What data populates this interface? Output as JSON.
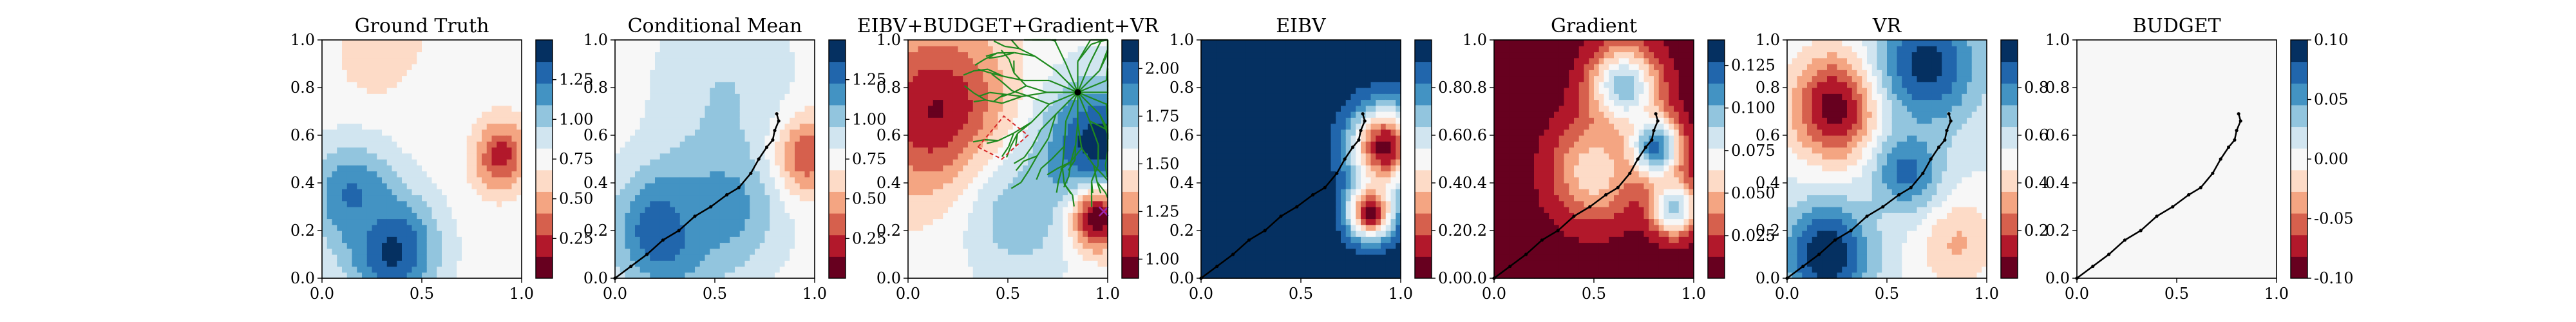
{
  "chart_data": [
    {
      "type": "heatmap",
      "title": "Ground Truth",
      "xlim": [
        0,
        1
      ],
      "ylim": [
        0,
        1
      ],
      "x_ticks": [
        "0.0",
        "0.5",
        "1.0"
      ],
      "y_ticks": [
        "0.0",
        "0.2",
        "0.4",
        "0.6",
        "0.8",
        "1.0"
      ],
      "colormap": "RdBu",
      "colorbar": {
        "min": 0.0,
        "max": 1.5,
        "ticks": [
          "0.25",
          "0.50",
          "0.75",
          "1.00",
          "1.25"
        ]
      },
      "features": [
        {
          "x": 0.88,
          "y": 0.52,
          "value": 0.12,
          "spread": 0.1
        },
        {
          "x": 0.3,
          "y": 0.95,
          "value": 0.55,
          "spread": 0.14
        },
        {
          "x": 0.55,
          "y": 0.62,
          "value": 0.75,
          "spread": 0.18
        },
        {
          "x": 0.35,
          "y": 0.12,
          "value": 1.42,
          "spread": 0.16
        },
        {
          "x": 0.15,
          "y": 0.35,
          "value": 1.25,
          "spread": 0.15
        }
      ],
      "path": []
    },
    {
      "type": "heatmap",
      "title": "Conditional Mean",
      "xlim": [
        0,
        1
      ],
      "ylim": [
        0,
        1
      ],
      "x_ticks": [
        "0.0",
        "0.5",
        "1.0"
      ],
      "y_ticks": [
        "0.0",
        "0.2",
        "0.4",
        "0.6",
        "0.8",
        "1.0"
      ],
      "colormap": "RdBu",
      "colorbar": {
        "min": 0.0,
        "max": 1.5,
        "ticks": [
          "0.25",
          "0.50",
          "0.75",
          "1.00",
          "1.25"
        ]
      },
      "features": [
        {
          "x": 0.92,
          "y": 0.52,
          "value": 0.1,
          "spread": 0.12
        },
        {
          "x": 0.55,
          "y": 0.8,
          "value": 0.95,
          "spread": 0.25
        },
        {
          "x": 0.25,
          "y": 0.2,
          "value": 1.4,
          "spread": 0.18
        },
        {
          "x": 0.55,
          "y": 0.3,
          "value": 1.15,
          "spread": 0.2
        }
      ],
      "path": [
        [
          0.0,
          0.0
        ],
        [
          0.08,
          0.05
        ],
        [
          0.16,
          0.1
        ],
        [
          0.24,
          0.16
        ],
        [
          0.32,
          0.2
        ],
        [
          0.4,
          0.26
        ],
        [
          0.48,
          0.3
        ],
        [
          0.56,
          0.35
        ],
        [
          0.62,
          0.38
        ],
        [
          0.68,
          0.44
        ],
        [
          0.72,
          0.5
        ],
        [
          0.76,
          0.55
        ],
        [
          0.79,
          0.58
        ],
        [
          0.8,
          0.62
        ],
        [
          0.82,
          0.66
        ],
        [
          0.81,
          0.69
        ]
      ]
    },
    {
      "type": "heatmap",
      "title": "EIBV+BUDGET+Gradient+VR",
      "xlim": [
        0,
        1
      ],
      "ylim": [
        0,
        1
      ],
      "x_ticks": [
        "0.0",
        "0.5",
        "1.0"
      ],
      "y_ticks": [
        "0.0",
        "0.2",
        "0.4",
        "0.6",
        "0.8",
        "1.0"
      ],
      "colormap": "RdBu",
      "colorbar": {
        "min": 0.9,
        "max": 2.15,
        "ticks": [
          "1.00",
          "1.25",
          "1.50",
          "1.75",
          "2.00"
        ]
      },
      "features": [
        {
          "x": 0.15,
          "y": 0.7,
          "value": 1.0,
          "spread": 0.25
        },
        {
          "x": 0.55,
          "y": 0.25,
          "value": 1.75,
          "spread": 0.2
        },
        {
          "x": 0.95,
          "y": 0.55,
          "value": 2.1,
          "spread": 0.2
        },
        {
          "x": 0.95,
          "y": 0.25,
          "value": 0.95,
          "spread": 0.1
        }
      ],
      "tree_root": [
        0.85,
        0.78
      ],
      "target_marker": [
        0.98,
        0.28
      ],
      "dashed_polygon": [
        [
          0.35,
          0.55
        ],
        [
          0.48,
          0.68
        ],
        [
          0.6,
          0.6
        ],
        [
          0.47,
          0.5
        ]
      ],
      "path": []
    },
    {
      "type": "heatmap",
      "title": "EIBV",
      "xlim": [
        0,
        1
      ],
      "ylim": [
        0,
        1
      ],
      "x_ticks": [
        "0.0",
        "0.5",
        "1.0"
      ],
      "y_ticks": [
        "0.0",
        "0.2",
        "0.4",
        "0.6",
        "0.8",
        "1.0"
      ],
      "colormap": "RdBu",
      "colorbar": {
        "min": 0.0,
        "max": 1.0,
        "ticks": [
          "0.0",
          "0.2",
          "0.4",
          "0.6",
          "0.8"
        ]
      },
      "features": [
        {
          "x": 0.92,
          "y": 0.55,
          "value": 0.05,
          "spread": 0.12
        },
        {
          "x": 0.85,
          "y": 0.28,
          "value": 0.05,
          "spread": 0.08
        }
      ],
      "background_value": 0.98,
      "path": [
        [
          0.0,
          0.0
        ],
        [
          0.08,
          0.05
        ],
        [
          0.16,
          0.1
        ],
        [
          0.24,
          0.16
        ],
        [
          0.32,
          0.2
        ],
        [
          0.4,
          0.26
        ],
        [
          0.48,
          0.3
        ],
        [
          0.56,
          0.35
        ],
        [
          0.62,
          0.38
        ],
        [
          0.68,
          0.44
        ],
        [
          0.72,
          0.5
        ],
        [
          0.76,
          0.55
        ],
        [
          0.79,
          0.58
        ],
        [
          0.8,
          0.62
        ],
        [
          0.82,
          0.66
        ],
        [
          0.81,
          0.69
        ]
      ]
    },
    {
      "type": "heatmap",
      "title": "Gradient",
      "xlim": [
        0,
        1
      ],
      "ylim": [
        0,
        1
      ],
      "x_ticks": [
        "0.0",
        "0.5",
        "1.0"
      ],
      "y_ticks": [
        "0.0",
        "0.2",
        "0.4",
        "0.6",
        "0.8",
        "1.0"
      ],
      "colormap": "RdBu",
      "colorbar": {
        "min": 0.0,
        "max": 0.14,
        "ticks": [
          "0.025",
          "0.050",
          "0.075",
          "0.100",
          "0.125"
        ]
      },
      "features": [
        {
          "x": 0.8,
          "y": 0.55,
          "value": 0.13,
          "spread": 0.09
        },
        {
          "x": 0.65,
          "y": 0.8,
          "value": 0.1,
          "spread": 0.12
        },
        {
          "x": 0.9,
          "y": 0.3,
          "value": 0.1,
          "spread": 0.08
        },
        {
          "x": 0.5,
          "y": 0.45,
          "value": 0.06,
          "spread": 0.15
        }
      ],
      "background_value": 0.005,
      "path": [
        [
          0.0,
          0.0
        ],
        [
          0.08,
          0.05
        ],
        [
          0.16,
          0.1
        ],
        [
          0.24,
          0.16
        ],
        [
          0.32,
          0.2
        ],
        [
          0.4,
          0.26
        ],
        [
          0.48,
          0.3
        ],
        [
          0.56,
          0.35
        ],
        [
          0.62,
          0.38
        ],
        [
          0.68,
          0.44
        ],
        [
          0.72,
          0.5
        ],
        [
          0.76,
          0.55
        ],
        [
          0.79,
          0.58
        ],
        [
          0.8,
          0.62
        ],
        [
          0.82,
          0.66
        ],
        [
          0.81,
          0.69
        ]
      ]
    },
    {
      "type": "heatmap",
      "title": "VR",
      "xlim": [
        0,
        1
      ],
      "ylim": [
        0,
        1
      ],
      "x_ticks": [
        "0.0",
        "0.5",
        "1.0"
      ],
      "y_ticks": [
        "0.0",
        "0.2",
        "0.4",
        "0.6",
        "0.8",
        "1.0"
      ],
      "colormap": "RdBu",
      "colorbar": {
        "min": 0.0,
        "max": 1.0,
        "ticks": [
          "0.2",
          "0.4",
          "0.6",
          "0.8"
        ]
      },
      "features": [
        {
          "x": 0.25,
          "y": 0.72,
          "value": 0.02,
          "spread": 0.16
        },
        {
          "x": 0.85,
          "y": 0.15,
          "value": 0.35,
          "spread": 0.14
        },
        {
          "x": 0.2,
          "y": 0.1,
          "value": 1.0,
          "spread": 0.15
        },
        {
          "x": 0.7,
          "y": 0.9,
          "value": 0.95,
          "spread": 0.18
        },
        {
          "x": 0.6,
          "y": 0.45,
          "value": 0.85,
          "spread": 0.12
        }
      ],
      "background_value": 0.55,
      "path": [
        [
          0.0,
          0.0
        ],
        [
          0.08,
          0.05
        ],
        [
          0.16,
          0.1
        ],
        [
          0.24,
          0.16
        ],
        [
          0.32,
          0.2
        ],
        [
          0.4,
          0.26
        ],
        [
          0.48,
          0.3
        ],
        [
          0.56,
          0.35
        ],
        [
          0.62,
          0.38
        ],
        [
          0.68,
          0.44
        ],
        [
          0.72,
          0.5
        ],
        [
          0.76,
          0.55
        ],
        [
          0.79,
          0.58
        ],
        [
          0.8,
          0.62
        ],
        [
          0.82,
          0.66
        ],
        [
          0.81,
          0.69
        ]
      ]
    },
    {
      "type": "heatmap",
      "title": "BUDGET",
      "xlim": [
        0,
        1
      ],
      "ylim": [
        0,
        1
      ],
      "x_ticks": [
        "0.0",
        "0.5",
        "1.0"
      ],
      "y_ticks": [
        "0.0",
        "0.2",
        "0.4",
        "0.6",
        "0.8",
        "1.0"
      ],
      "colormap": "RdBu",
      "colorbar": {
        "min": -0.1,
        "max": 0.1,
        "ticks": [
          "-0.10",
          "-0.05",
          "0.00",
          "0.05",
          "0.10"
        ]
      },
      "features": [],
      "background_value": 0.0,
      "path": [
        [
          0.0,
          0.0
        ],
        [
          0.08,
          0.05
        ],
        [
          0.16,
          0.1
        ],
        [
          0.24,
          0.16
        ],
        [
          0.32,
          0.2
        ],
        [
          0.4,
          0.26
        ],
        [
          0.48,
          0.3
        ],
        [
          0.56,
          0.35
        ],
        [
          0.62,
          0.38
        ],
        [
          0.68,
          0.44
        ],
        [
          0.72,
          0.5
        ],
        [
          0.76,
          0.55
        ],
        [
          0.79,
          0.58
        ],
        [
          0.8,
          0.62
        ],
        [
          0.82,
          0.66
        ],
        [
          0.81,
          0.69
        ]
      ]
    }
  ]
}
